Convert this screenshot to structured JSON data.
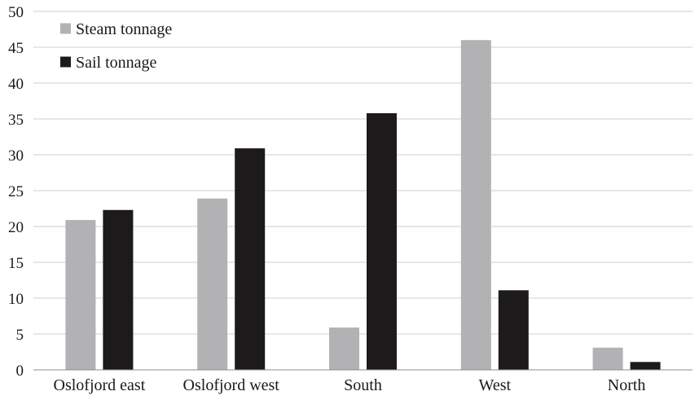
{
  "chart_data": {
    "type": "bar",
    "title": "",
    "xlabel": "",
    "ylabel": "",
    "categories": [
      "Oslofjord east",
      "Oslofjord west",
      "South",
      "West",
      "North"
    ],
    "series": [
      {
        "name": "Steam tonnage",
        "values": [
          20.9,
          23.9,
          5.9,
          46.0,
          3.1
        ],
        "color": "#b2b2b4"
      },
      {
        "name": "Sail tonnage",
        "values": [
          22.3,
          30.9,
          35.8,
          11.1,
          1.1
        ],
        "color": "#1c1a1b"
      }
    ],
    "ylim": [
      0,
      50
    ],
    "yticks": [
      0,
      5,
      10,
      15,
      20,
      25,
      30,
      35,
      40,
      45,
      50
    ],
    "grid": true,
    "legend_position": "top-left"
  }
}
